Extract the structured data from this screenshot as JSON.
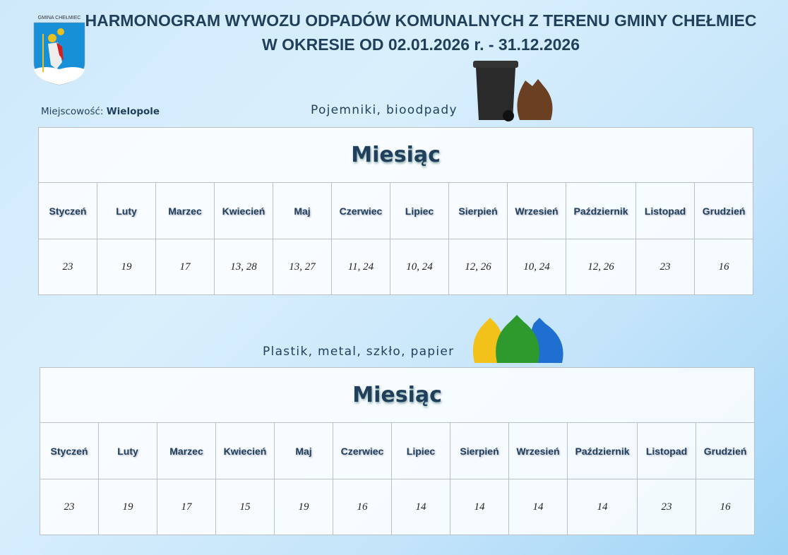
{
  "header": {
    "crest_text": "GMINA CHEŁMIEC",
    "title_line1": "HARMONOGRAM WYWOZU ODPADÓW KOMUNALNYCH Z TERENU GMINY CHEŁMIEC",
    "title_line2": "W OKRESIE OD 02.01.2026 r. - 31.12.2026"
  },
  "location": {
    "label": "Miejscowość:",
    "value": "Wielopole"
  },
  "months": [
    "Styczeń",
    "Luty",
    "Marzec",
    "Kwiecień",
    "Maj",
    "Czerwiec",
    "Lipiec",
    "Sierpień",
    "Wrzesień",
    "Październik",
    "Listopad",
    "Grudzień"
  ],
  "tables": [
    {
      "category": "Pojemniki, bioodpady",
      "icon": "bin-and-brown-bag-icon",
      "header": "Miesiąc",
      "dates": [
        "23",
        "19",
        "17",
        "13, 28",
        "13, 27",
        "11, 24",
        "10, 24",
        "12, 26",
        "10, 24",
        "12, 26",
        "23",
        "16"
      ]
    },
    {
      "category": "Plastik, metal, szkło, papier",
      "icon": "yellow-green-blue-bags-icon",
      "header": "Miesiąc",
      "dates": [
        "23",
        "19",
        "17",
        "15",
        "19",
        "16",
        "14",
        "14",
        "14",
        "14",
        "23",
        "16"
      ]
    }
  ],
  "colors": {
    "title": "#1f3f5b",
    "yellow_bag": "#f2c21a",
    "green_bag": "#2e9a2e",
    "blue_bag": "#1f6fd1",
    "brown_bag": "#6b3f22",
    "bin": "#2a2a2a"
  }
}
